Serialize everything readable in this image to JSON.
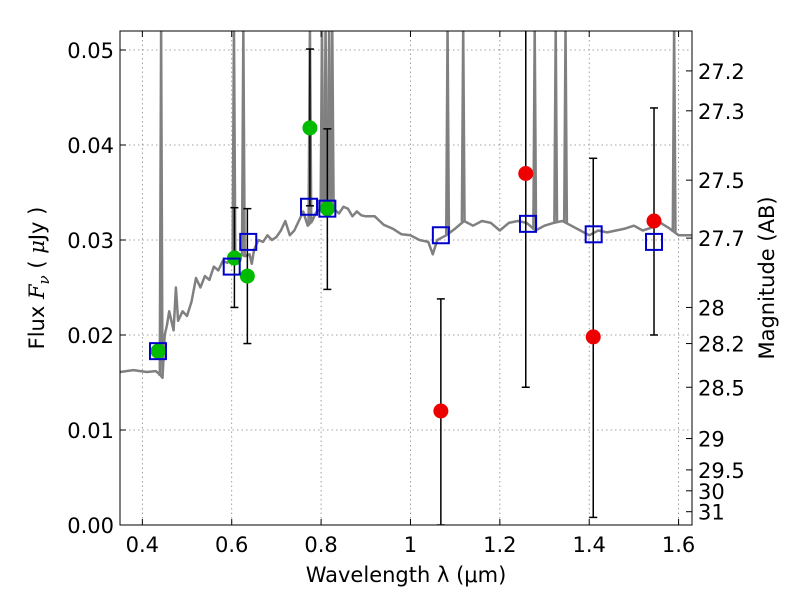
{
  "chart_data": {
    "type": "scatter",
    "xlabel": "Wavelength  λ (μm)",
    "ylabel": "Flux  Fν  ( μJy )",
    "ylabel_parts": {
      "pre": "Flux  ",
      "sym": "F",
      "sub": "ν",
      "mid": "  ( ",
      "mu": "μ",
      "post": "Jy )"
    },
    "y2label": "Magnitude (AB)",
    "xlim": [
      0.35,
      1.63
    ],
    "ylim": [
      0.0,
      0.052
    ],
    "grid": true,
    "x_ticks": [
      0.4,
      0.6,
      0.8,
      1.0,
      1.2,
      1.4,
      1.6
    ],
    "x_tick_labels": [
      "0.4",
      "0.6",
      "0.8",
      "1",
      "1.2",
      "1.4",
      "1.6"
    ],
    "y_ticks": [
      0.0,
      0.01,
      0.02,
      0.03,
      0.04,
      0.05
    ],
    "y_tick_labels": [
      "0.00",
      "0.01",
      "0.02",
      "0.03",
      "0.04",
      "0.05"
    ],
    "mag_ticks": [
      {
        "label": "27.2",
        "flux": 0.0478
      },
      {
        "label": "27.3",
        "flux": 0.0436
      },
      {
        "label": "27.5",
        "flux": 0.0363
      },
      {
        "label": "27.7",
        "flux": 0.0302
      },
      {
        "label": "28",
        "flux": 0.0229
      },
      {
        "label": "28.2",
        "flux": 0.0191
      },
      {
        "label": "28.5",
        "flux": 0.0145
      },
      {
        "label": "29",
        "flux": 0.0091
      },
      {
        "label": "29.5",
        "flux": 0.0058
      },
      {
        "label": "30",
        "flux": 0.0036
      },
      {
        "label": "31",
        "flux": 0.0014
      }
    ],
    "colors": {
      "model": "#808080",
      "green_obs": "#00bb00",
      "red_obs": "#ee0000",
      "model_box": "#0000cc",
      "error_bar": "#000000",
      "grid": "#888888"
    },
    "series": [
      {
        "kind": "model-spectrum",
        "x": [
          0.35,
          0.38,
          0.41,
          0.43,
          0.44,
          0.445,
          0.45,
          0.455,
          0.46,
          0.465,
          0.47,
          0.475,
          0.48,
          0.49,
          0.5,
          0.51,
          0.52,
          0.53,
          0.54,
          0.55,
          0.56,
          0.57,
          0.58,
          0.59,
          0.6,
          0.61,
          0.62,
          0.63,
          0.64,
          0.645,
          0.65,
          0.66,
          0.67,
          0.68,
          0.69,
          0.7,
          0.71,
          0.72,
          0.73,
          0.74,
          0.75,
          0.76,
          0.77,
          0.78,
          0.79,
          0.8,
          0.81,
          0.82,
          0.83,
          0.84,
          0.85,
          0.86,
          0.87,
          0.88,
          0.89,
          0.9,
          0.92,
          0.94,
          0.96,
          0.98,
          1.0,
          1.02,
          1.04,
          1.05,
          1.06,
          1.08,
          1.1,
          1.12,
          1.14,
          1.16,
          1.18,
          1.2,
          1.22,
          1.24,
          1.26,
          1.28,
          1.3,
          1.32,
          1.34,
          1.36,
          1.38,
          1.4,
          1.42,
          1.44,
          1.46,
          1.48,
          1.5,
          1.52,
          1.54,
          1.56,
          1.58,
          1.6,
          1.63
        ],
        "y": [
          0.0161,
          0.0163,
          0.0161,
          0.0162,
          0.0158,
          0.0155,
          0.02,
          0.021,
          0.0225,
          0.0215,
          0.0205,
          0.025,
          0.0215,
          0.0225,
          0.022,
          0.0235,
          0.026,
          0.025,
          0.0262,
          0.0258,
          0.0272,
          0.0268,
          0.0278,
          0.0276,
          0.028,
          0.0285,
          0.0285,
          0.0283,
          0.0285,
          0.0275,
          0.029,
          0.03,
          0.0298,
          0.0305,
          0.03,
          0.0303,
          0.031,
          0.032,
          0.0305,
          0.031,
          0.032,
          0.033,
          0.0315,
          0.032,
          0.033,
          0.0333,
          0.0328,
          0.034,
          0.0332,
          0.0328,
          0.0335,
          0.0333,
          0.0325,
          0.033,
          0.0326,
          0.0325,
          0.0325,
          0.0316,
          0.0312,
          0.0306,
          0.0305,
          0.03,
          0.0298,
          0.0285,
          0.03,
          0.0305,
          0.0312,
          0.032,
          0.0315,
          0.032,
          0.0318,
          0.031,
          0.0318,
          0.032,
          0.0318,
          0.031,
          0.0315,
          0.0318,
          0.032,
          0.0315,
          0.031,
          0.0305,
          0.031,
          0.0308,
          0.031,
          0.0312,
          0.0315,
          0.031,
          0.0313,
          0.0318,
          0.0312,
          0.0305,
          0.0305
        ]
      },
      {
        "kind": "model-box",
        "x": [
          0.435,
          0.6,
          0.637,
          0.773,
          0.814,
          1.068,
          1.263,
          1.41,
          1.545
        ],
        "y": [
          0.0183,
          0.0272,
          0.0298,
          0.0335,
          0.0333,
          0.0305,
          0.0317,
          0.0306,
          0.0298
        ]
      },
      {
        "kind": "green-observation",
        "x": [
          0.435,
          0.606,
          0.635,
          0.775,
          0.814
        ],
        "y": [
          0.0183,
          0.0281,
          0.0262,
          0.0418,
          0.0333
        ],
        "yerr_low": [
          null,
          0.0229,
          0.0191,
          0.0336,
          0.0248
        ],
        "yerr_high": [
          null,
          0.0334,
          0.0333,
          0.0501,
          0.0417
        ]
      },
      {
        "kind": "red-observation",
        "x": [
          1.068,
          1.258,
          1.409,
          1.545
        ],
        "y": [
          0.012,
          0.037,
          0.0198,
          0.032
        ],
        "yerr_low": [
          0.0,
          0.0145,
          0.0008,
          0.02
        ],
        "yerr_high": [
          0.0238,
          0.0525,
          0.0386,
          0.0439
        ]
      }
    ],
    "emission_lines": [
      0.442,
      0.605,
      0.626,
      0.775,
      0.802,
      0.81,
      0.818,
      0.825,
      1.083,
      1.118,
      1.278,
      1.325,
      1.347,
      1.59
    ]
  }
}
